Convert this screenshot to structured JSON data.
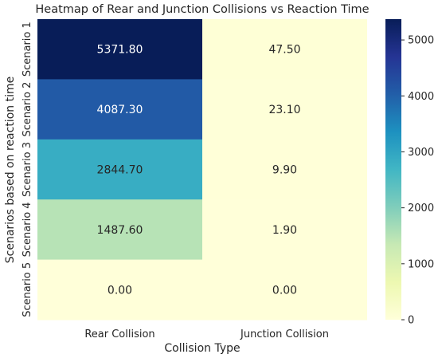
{
  "chart_data": {
    "type": "heatmap",
    "title": "Heatmap of Rear and Junction Collisions vs Reaction Time",
    "xlabel": "Collision Type",
    "ylabel": "Scenarios based on reaction time",
    "columns": [
      "Rear Collision",
      "Junction Collision"
    ],
    "rows": [
      "Scenario 1",
      "Scenario 2",
      "Scenario 3",
      "Scenario 4",
      "Scenario 5"
    ],
    "values": [
      [
        5371.8,
        47.5
      ],
      [
        4087.3,
        23.1
      ],
      [
        2844.7,
        9.9
      ],
      [
        1487.6,
        1.9
      ],
      [
        0.0,
        0.0
      ]
    ],
    "value_labels": [
      [
        "5371.80",
        "47.50"
      ],
      [
        "4087.30",
        "23.10"
      ],
      [
        "2844.70",
        "9.90"
      ],
      [
        "1487.60",
        "1.90"
      ],
      [
        "0.00",
        "0.00"
      ]
    ],
    "colormap": "YlGnBu",
    "colorbar": {
      "range": [
        0,
        5371.8
      ],
      "ticks": [
        0,
        1000,
        2000,
        3000,
        4000,
        5000
      ],
      "tick_labels": [
        "0",
        "1000",
        "2000",
        "3000",
        "4000",
        "5000"
      ]
    }
  }
}
